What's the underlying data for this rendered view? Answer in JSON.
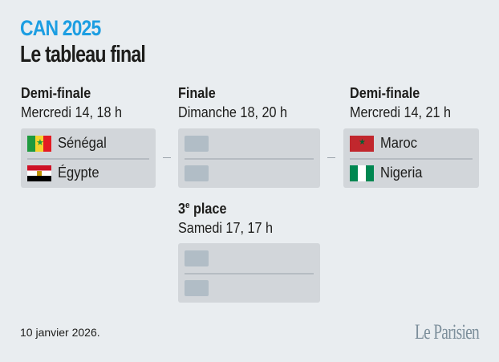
{
  "header": {
    "kicker": "CAN 2025",
    "title": "Le tableau final"
  },
  "colors": {
    "accent": "#1c9ee2",
    "background": "#e9edf0",
    "card": "#d2d6da",
    "placeholder": "#b1bdc6"
  },
  "semi1": {
    "round": "Demi-finale",
    "date": "Mercredi 14, 18 h",
    "teams": [
      {
        "name": "Sénégal",
        "flag": "senegal-flag"
      },
      {
        "name": "Égypte",
        "flag": "egypt-flag"
      }
    ]
  },
  "final": {
    "round": "Finale",
    "date": "Dimanche 18, 20 h"
  },
  "semi2": {
    "round": "Demi-finale",
    "date": "Mercredi 14, 21 h",
    "teams": [
      {
        "name": "Maroc",
        "flag": "morocco-flag"
      },
      {
        "name": "Nigeria",
        "flag": "nigeria-flag"
      }
    ]
  },
  "third": {
    "round_num": "3",
    "round_sup": "e",
    "round_rest": " place",
    "date": "Samedi 17, 17 h"
  },
  "footer": {
    "date": "10 janvier 2026.",
    "logo": "Le Parisien"
  }
}
